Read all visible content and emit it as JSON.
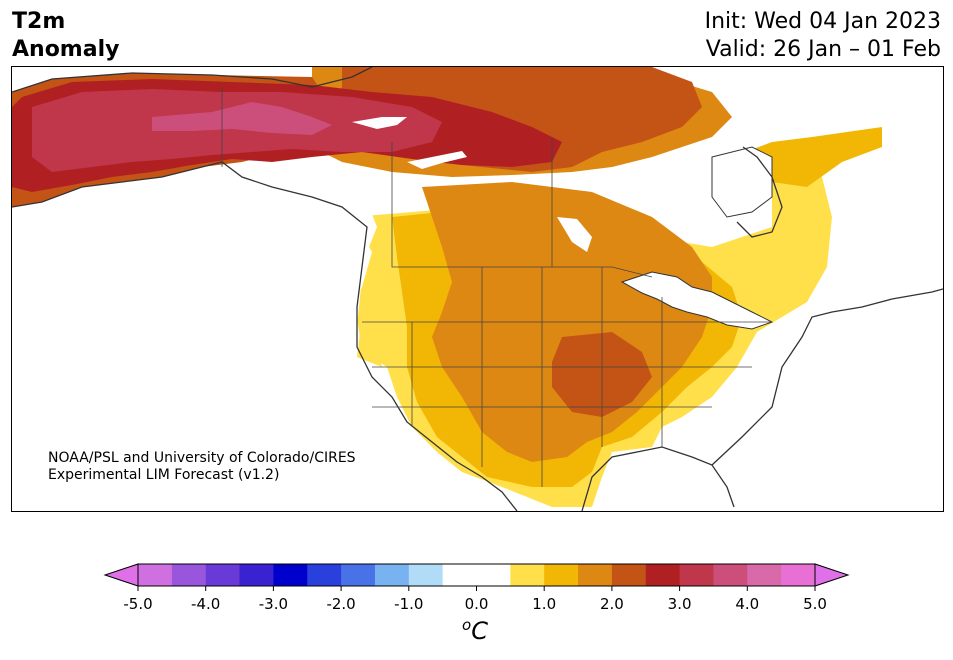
{
  "header": {
    "title_line1": "T2m",
    "title_line2": "Anomaly",
    "init": "Init: Wed 04 Jan 2023",
    "valid": "Valid: 26 Jan – 01 Feb"
  },
  "credit": {
    "line1": "NOAA/PSL and University of Colorado/CIRES",
    "line2": "Experimental LIM Forecast (v1.2)"
  },
  "colorbar": {
    "unit_base": "C",
    "unit_sup": "o",
    "ticks": [
      "-5.0",
      "-4.0",
      "-3.0",
      "-2.0",
      "-1.0",
      "0.0",
      "1.0",
      "2.0",
      "3.0",
      "4.0",
      "5.0"
    ],
    "under_color": "#e070e8",
    "over_color": "#e070e8",
    "colors": [
      "#d070e0",
      "#9a55dd",
      "#6a3ad8",
      "#3a22d0",
      "#0000cc",
      "#2a40dd",
      "#4a72e8",
      "#78b2f0",
      "#b0dcf8",
      "#ffffff",
      "#ffffff",
      "#ffe04a",
      "#f2b705",
      "#dd8812",
      "#c45415",
      "#b02022",
      "#c0364a",
      "#cc4f7b",
      "#d86aaa",
      "#e870d4"
    ]
  },
  "map": {
    "legend": [
      {
        "level": "0.5 to 1.0",
        "color": "#ffe04a"
      },
      {
        "level": "1.0 to 1.5",
        "color": "#f2b705"
      },
      {
        "level": "1.5 to 2.0",
        "color": "#dd8812"
      },
      {
        "level": "2.0 to 2.5",
        "color": "#c45415"
      },
      {
        "level": "2.5 to 3.0",
        "color": "#b02022"
      },
      {
        "level": "3.0 to 3.5",
        "color": "#c0364a"
      },
      {
        "level": "3.5 to 4.0",
        "color": "#cc4f7b"
      }
    ],
    "coast_color": "#333333"
  }
}
